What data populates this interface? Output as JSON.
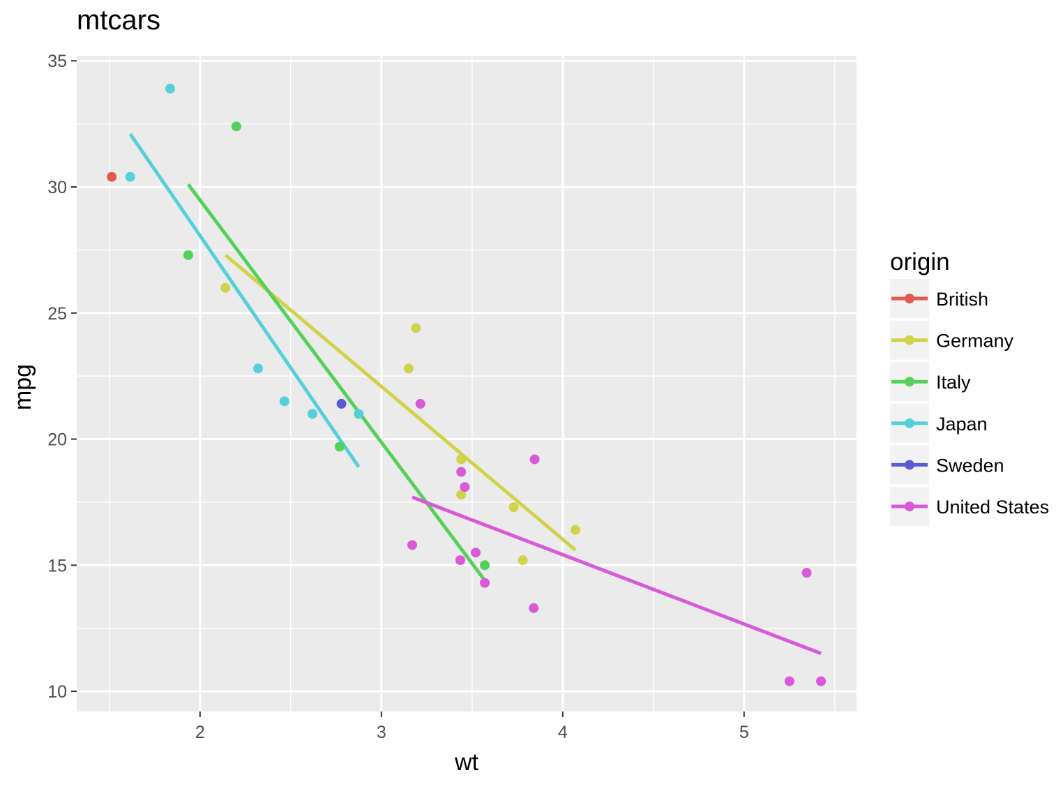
{
  "chart_data": {
    "type": "scatter",
    "title": "mtcars",
    "xlabel": "wt",
    "ylabel": "mpg",
    "xlim": [
      1.32,
      5.62
    ],
    "ylim": [
      9.2,
      35.2
    ],
    "x_ticks": [
      2,
      3,
      4,
      5
    ],
    "y_ticks": [
      10,
      15,
      20,
      25,
      30,
      35
    ],
    "grid": true,
    "legend": {
      "title": "origin",
      "position": "right"
    },
    "series": [
      {
        "name": "British",
        "color": "#e05a4e",
        "points": [
          [
            1.513,
            30.4
          ]
        ],
        "fit": null
      },
      {
        "name": "Germany",
        "color": "#d0d34a",
        "points": [
          [
            2.14,
            26.0
          ],
          [
            3.19,
            24.4
          ],
          [
            3.15,
            22.8
          ],
          [
            3.44,
            19.2
          ],
          [
            3.44,
            17.8
          ],
          [
            3.73,
            17.3
          ],
          [
            3.78,
            15.2
          ],
          [
            4.07,
            16.4
          ]
        ],
        "fit": [
          [
            2.14,
            27.3
          ],
          [
            4.07,
            15.6
          ]
        ]
      },
      {
        "name": "Italy",
        "color": "#54d158",
        "points": [
          [
            1.935,
            27.3
          ],
          [
            2.2,
            32.4
          ],
          [
            2.77,
            19.7
          ],
          [
            3.57,
            15.0
          ]
        ],
        "fit": [
          [
            1.935,
            30.1
          ],
          [
            3.57,
            14.4
          ]
        ]
      },
      {
        "name": "Japan",
        "color": "#55d0db",
        "points": [
          [
            1.615,
            30.4
          ],
          [
            1.835,
            33.9
          ],
          [
            2.32,
            22.8
          ],
          [
            2.465,
            21.5
          ],
          [
            2.62,
            21.0
          ],
          [
            2.875,
            21.0
          ]
        ],
        "fit": [
          [
            1.615,
            32.1
          ],
          [
            2.875,
            18.9
          ]
        ]
      },
      {
        "name": "Sweden",
        "color": "#5a5ad6",
        "points": [
          [
            2.78,
            21.4
          ]
        ],
        "fit": null
      },
      {
        "name": "United States",
        "color": "#d85ad8",
        "points": [
          [
            3.215,
            21.4
          ],
          [
            3.44,
            18.7
          ],
          [
            3.46,
            18.1
          ],
          [
            3.57,
            14.3
          ],
          [
            3.17,
            15.8
          ],
          [
            3.435,
            15.2
          ],
          [
            3.52,
            15.5
          ],
          [
            3.84,
            13.3
          ],
          [
            3.845,
            19.2
          ],
          [
            5.25,
            10.4
          ],
          [
            5.424,
            10.4
          ],
          [
            5.345,
            14.7
          ]
        ],
        "fit": [
          [
            3.17,
            17.7
          ],
          [
            5.424,
            11.5
          ]
        ]
      }
    ]
  }
}
